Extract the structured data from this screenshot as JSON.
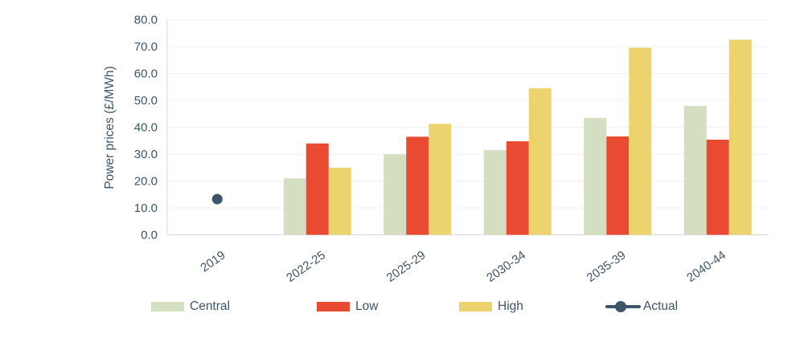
{
  "chart_data": {
    "type": "bar",
    "title": "",
    "xlabel": "",
    "ylabel": "Power prices (£/MWh)",
    "ylim": [
      0,
      80
    ],
    "ytick_step": 10,
    "ytick_decimals": 1,
    "grid": "horizontal",
    "legend_position": "bottom",
    "categories": [
      "2019",
      "2022-25",
      "2025-29",
      "2030-34",
      "2035-39",
      "2040-44"
    ],
    "series": [
      {
        "name": "Central",
        "kind": "bar",
        "color": "#d4dfc2",
        "values": [
          null,
          21.0,
          30.0,
          31.5,
          43.5,
          48.0
        ]
      },
      {
        "name": "Low",
        "kind": "bar",
        "color": "#e84b32",
        "values": [
          null,
          34.0,
          36.5,
          34.8,
          36.6,
          35.4
        ]
      },
      {
        "name": "High",
        "kind": "bar",
        "color": "#ecd36e",
        "values": [
          null,
          25.0,
          41.3,
          54.5,
          69.6,
          72.6
        ]
      },
      {
        "name": "Actual",
        "kind": "point",
        "color": "#3e5468",
        "values": [
          13.3,
          null,
          null,
          null,
          null,
          null
        ]
      }
    ]
  },
  "colors": {
    "background": "#ffffff",
    "axis_text": "#3e5468",
    "gridline": "#f0f0f0",
    "axis_line": "#d9d9d9"
  }
}
